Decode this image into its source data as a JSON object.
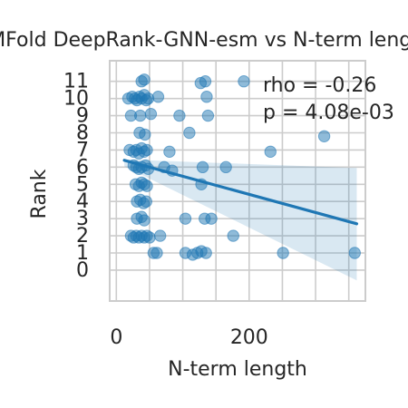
{
  "chart_data": {
    "type": "scatter",
    "title": "MFold DeepRank-GNN-esm vs N-term length",
    "xlabel": "N-term length",
    "ylabel": "Rank",
    "xlim": [
      -10,
      375
    ],
    "ylim": [
      -1.8,
      12.2
    ],
    "xticks": [
      0,
      200
    ],
    "yticks": [
      0,
      1,
      2,
      3,
      4,
      5,
      6,
      7,
      8,
      9,
      10,
      11
    ],
    "xgrid": [
      0,
      50,
      100,
      150,
      200,
      250,
      300,
      350
    ],
    "grid": true,
    "annotation": [
      "rho = -0.26",
      "p = 4.08e-03"
    ],
    "regression": {
      "x": [
        12,
        362
      ],
      "y": [
        6.4,
        2.7
      ],
      "ci_upper": [
        6.45,
        5.95
      ],
      "ci_lower": [
        6.05,
        -0.6
      ]
    },
    "points": [
      {
        "x": 38,
        "y": 11.0
      },
      {
        "x": 42,
        "y": 11.1
      },
      {
        "x": 127,
        "y": 10.9
      },
      {
        "x": 134,
        "y": 11.0
      },
      {
        "x": 192,
        "y": 11.0
      },
      {
        "x": 18,
        "y": 10.0
      },
      {
        "x": 24,
        "y": 10.1
      },
      {
        "x": 28,
        "y": 10.0
      },
      {
        "x": 31,
        "y": 9.9
      },
      {
        "x": 35,
        "y": 10.1
      },
      {
        "x": 38,
        "y": 10.0
      },
      {
        "x": 42,
        "y": 10.2
      },
      {
        "x": 45,
        "y": 9.9
      },
      {
        "x": 48,
        "y": 10.0
      },
      {
        "x": 63,
        "y": 10.1
      },
      {
        "x": 136,
        "y": 10.1
      },
      {
        "x": 22,
        "y": 9.0
      },
      {
        "x": 36,
        "y": 9.0
      },
      {
        "x": 52,
        "y": 9.1
      },
      {
        "x": 95,
        "y": 9.0
      },
      {
        "x": 138,
        "y": 9.0
      },
      {
        "x": 35,
        "y": 8.0
      },
      {
        "x": 43,
        "y": 7.9
      },
      {
        "x": 110,
        "y": 8.0
      },
      {
        "x": 313,
        "y": 7.8
      },
      {
        "x": 20,
        "y": 7.0
      },
      {
        "x": 26,
        "y": 6.9
      },
      {
        "x": 30,
        "y": 7.0
      },
      {
        "x": 34,
        "y": 6.8
      },
      {
        "x": 38,
        "y": 7.1
      },
      {
        "x": 42,
        "y": 6.9
      },
      {
        "x": 46,
        "y": 7.0
      },
      {
        "x": 80,
        "y": 6.9
      },
      {
        "x": 232,
        "y": 6.9
      },
      {
        "x": 26,
        "y": 6.1
      },
      {
        "x": 30,
        "y": 6.0
      },
      {
        "x": 34,
        "y": 5.9
      },
      {
        "x": 38,
        "y": 6.0
      },
      {
        "x": 44,
        "y": 6.1
      },
      {
        "x": 48,
        "y": 5.9
      },
      {
        "x": 72,
        "y": 6.0
      },
      {
        "x": 84,
        "y": 5.8
      },
      {
        "x": 130,
        "y": 6.0
      },
      {
        "x": 165,
        "y": 6.0
      },
      {
        "x": 29,
        "y": 5.0
      },
      {
        "x": 34,
        "y": 4.9
      },
      {
        "x": 38,
        "y": 5.1
      },
      {
        "x": 42,
        "y": 5.0
      },
      {
        "x": 46,
        "y": 4.9
      },
      {
        "x": 128,
        "y": 5.0
      },
      {
        "x": 31,
        "y": 4.0
      },
      {
        "x": 36,
        "y": 4.1
      },
      {
        "x": 41,
        "y": 3.9
      },
      {
        "x": 45,
        "y": 4.0
      },
      {
        "x": 31,
        "y": 3.0
      },
      {
        "x": 38,
        "y": 3.1
      },
      {
        "x": 42,
        "y": 2.9
      },
      {
        "x": 104,
        "y": 3.0
      },
      {
        "x": 133,
        "y": 3.0
      },
      {
        "x": 143,
        "y": 3.0
      },
      {
        "x": 22,
        "y": 2.0
      },
      {
        "x": 26,
        "y": 1.9
      },
      {
        "x": 30,
        "y": 2.0
      },
      {
        "x": 34,
        "y": 1.9
      },
      {
        "x": 38,
        "y": 2.0
      },
      {
        "x": 42,
        "y": 1.9
      },
      {
        "x": 46,
        "y": 2.0
      },
      {
        "x": 50,
        "y": 1.9
      },
      {
        "x": 66,
        "y": 2.0
      },
      {
        "x": 176,
        "y": 2.0
      },
      {
        "x": 56,
        "y": 1.0
      },
      {
        "x": 61,
        "y": 1.0
      },
      {
        "x": 104,
        "y": 1.0
      },
      {
        "x": 115,
        "y": 0.9
      },
      {
        "x": 122,
        "y": 1.0
      },
      {
        "x": 128,
        "y": 1.1
      },
      {
        "x": 135,
        "y": 1.0
      },
      {
        "x": 251,
        "y": 1.0
      },
      {
        "x": 359,
        "y": 1.0
      }
    ]
  }
}
